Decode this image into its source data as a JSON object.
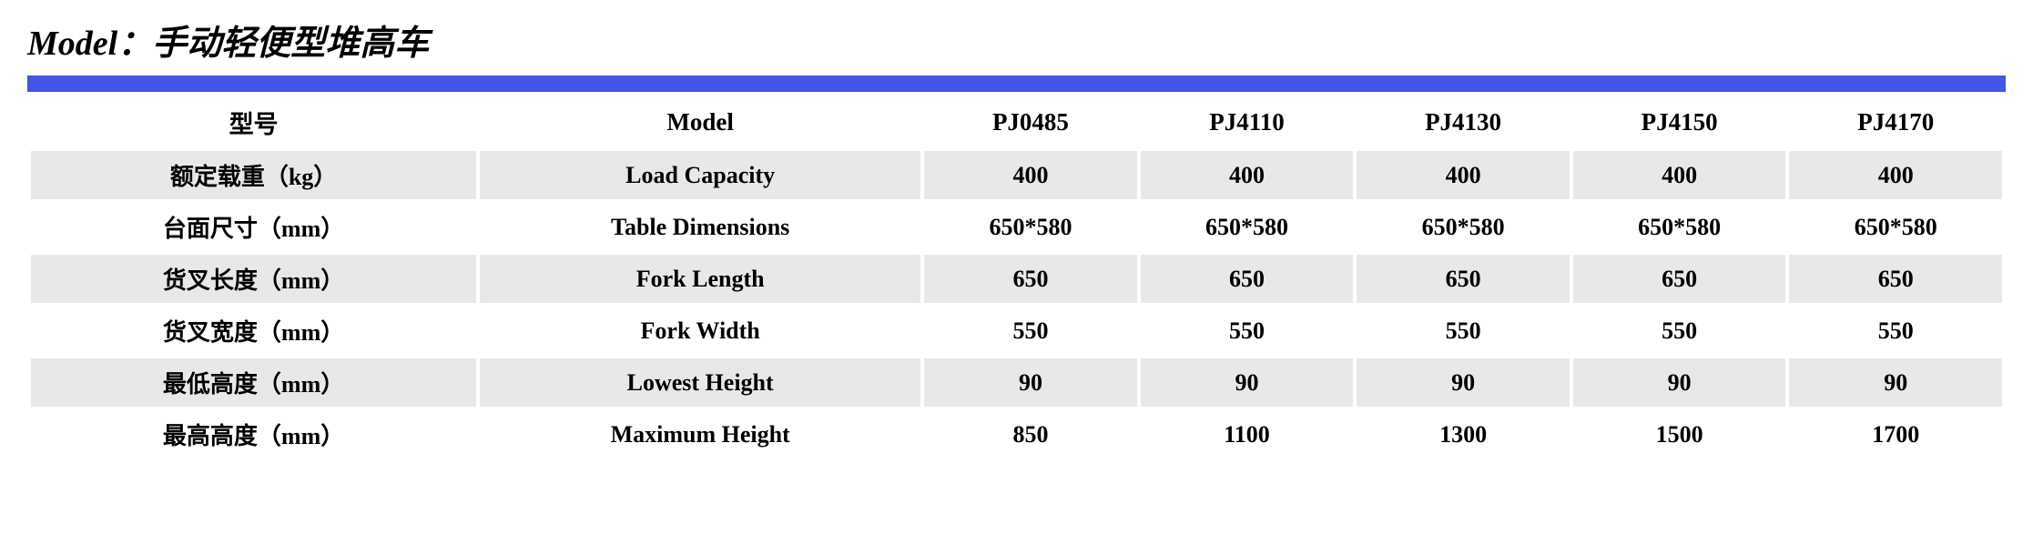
{
  "title": "Model：手动轻便型堆高车",
  "blue_bar_color": "#4255e6",
  "alt_row_bg": "#e8e8e8",
  "plain_row_bg": "#ffffff",
  "text_color": "#000000",
  "font_family": "Times New Roman / SimSun",
  "table": {
    "type": "table",
    "header": {
      "cn": "型号",
      "en": "Model",
      "models": [
        "PJ0485",
        "PJ4110",
        "PJ4130",
        "PJ4150",
        "PJ4170"
      ]
    },
    "rows": [
      {
        "cn": "额定载重（kg）",
        "en": "Load Capacity",
        "vals": [
          "400",
          "400",
          "400",
          "400",
          "400"
        ],
        "alt": true
      },
      {
        "cn": "台面尺寸（mm）",
        "en": "Table Dimensions",
        "vals": [
          "650*580",
          "650*580",
          "650*580",
          "650*580",
          "650*580"
        ],
        "alt": false
      },
      {
        "cn": "货叉长度（mm）",
        "en": "Fork Length",
        "vals": [
          "650",
          "650",
          "650",
          "650",
          "650"
        ],
        "alt": true
      },
      {
        "cn": "货叉宽度（mm）",
        "en": "Fork Width",
        "vals": [
          "550",
          "550",
          "550",
          "550",
          "550"
        ],
        "alt": false
      },
      {
        "cn": "最低高度（mm）",
        "en": "Lowest Height",
        "vals": [
          "90",
          "90",
          "90",
          "90",
          "90"
        ],
        "alt": true
      },
      {
        "cn": "最高高度（mm）",
        "en": "Maximum Height",
        "vals": [
          "850",
          "1100",
          "1300",
          "1500",
          "1700"
        ],
        "alt": false
      }
    ],
    "column_count": 7,
    "header_fontsize_pt": 20,
    "cell_fontsize_pt": 19
  }
}
